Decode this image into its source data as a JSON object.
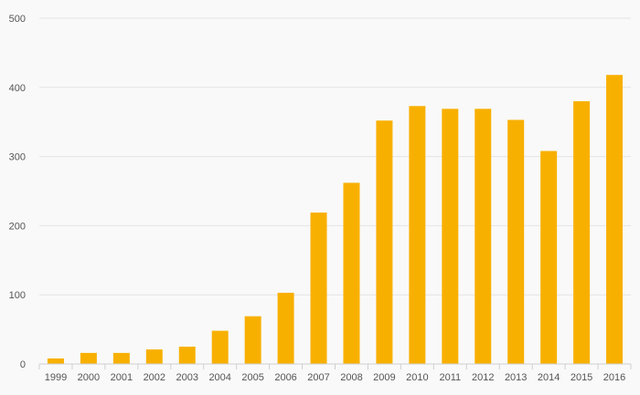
{
  "chart_data": {
    "type": "bar",
    "title": "",
    "xlabel": "",
    "ylabel": "",
    "categories": [
      "1999",
      "2000",
      "2001",
      "2002",
      "2003",
      "2004",
      "2005",
      "2006",
      "2007",
      "2008",
      "2009",
      "2010",
      "2011",
      "2012",
      "2013",
      "2014",
      "2015",
      "2016"
    ],
    "values": [
      8,
      16,
      16,
      21,
      25,
      48,
      69,
      103,
      219,
      262,
      352,
      373,
      369,
      369,
      353,
      308,
      380,
      418
    ],
    "ylim": [
      0,
      500
    ],
    "yticks": [
      "0",
      "100",
      "200",
      "300",
      "400",
      "500"
    ],
    "grid": "horizontal",
    "bar_color": "#f8b000"
  }
}
